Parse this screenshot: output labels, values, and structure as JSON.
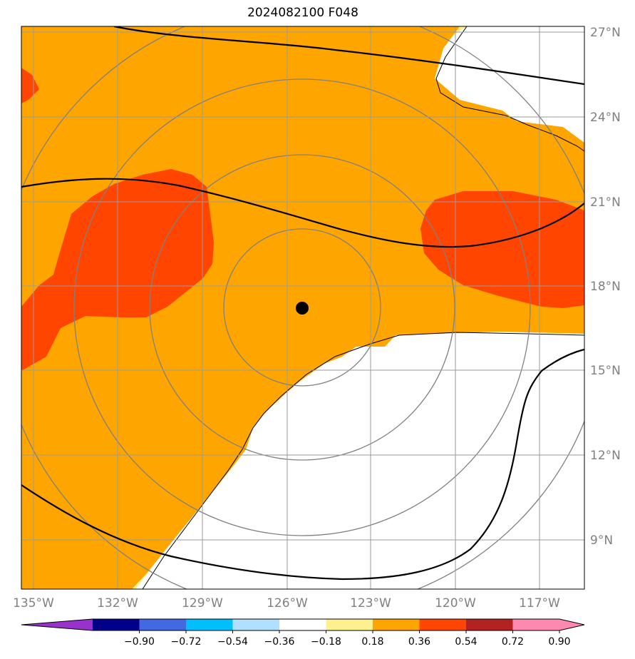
{
  "title": "2024082100 F048",
  "lat_labels": [
    "27°N",
    "24°N",
    "21°N",
    "18°N",
    "15°N",
    "12°N",
    "9°N"
  ],
  "lon_labels": [
    "135°W",
    "132°W",
    "129°W",
    "126°W",
    "123°W",
    "120°W",
    "117°W"
  ],
  "colorbar": {
    "labels": [
      "−0.90",
      "−0.72",
      "−0.54",
      "−0.36",
      "−0.18",
      "0.18",
      "0.36",
      "0.54",
      "0.72",
      "0.90"
    ],
    "colors": [
      "#9932cc",
      "#00008b",
      "#4169e1",
      "#00bfff",
      "#b0e0ff",
      "#ffffff",
      "#fff08f",
      "#ffa500",
      "#ff4500",
      "#b22222",
      "#ff88b0",
      "#ff88b0"
    ]
  },
  "colors": {
    "orange": "#ffa500",
    "red": "#ff4500",
    "yellow": "#fff08f",
    "grid": "#808080",
    "contour": "#000000"
  },
  "storm_center_icon": "black-dot-marker"
}
